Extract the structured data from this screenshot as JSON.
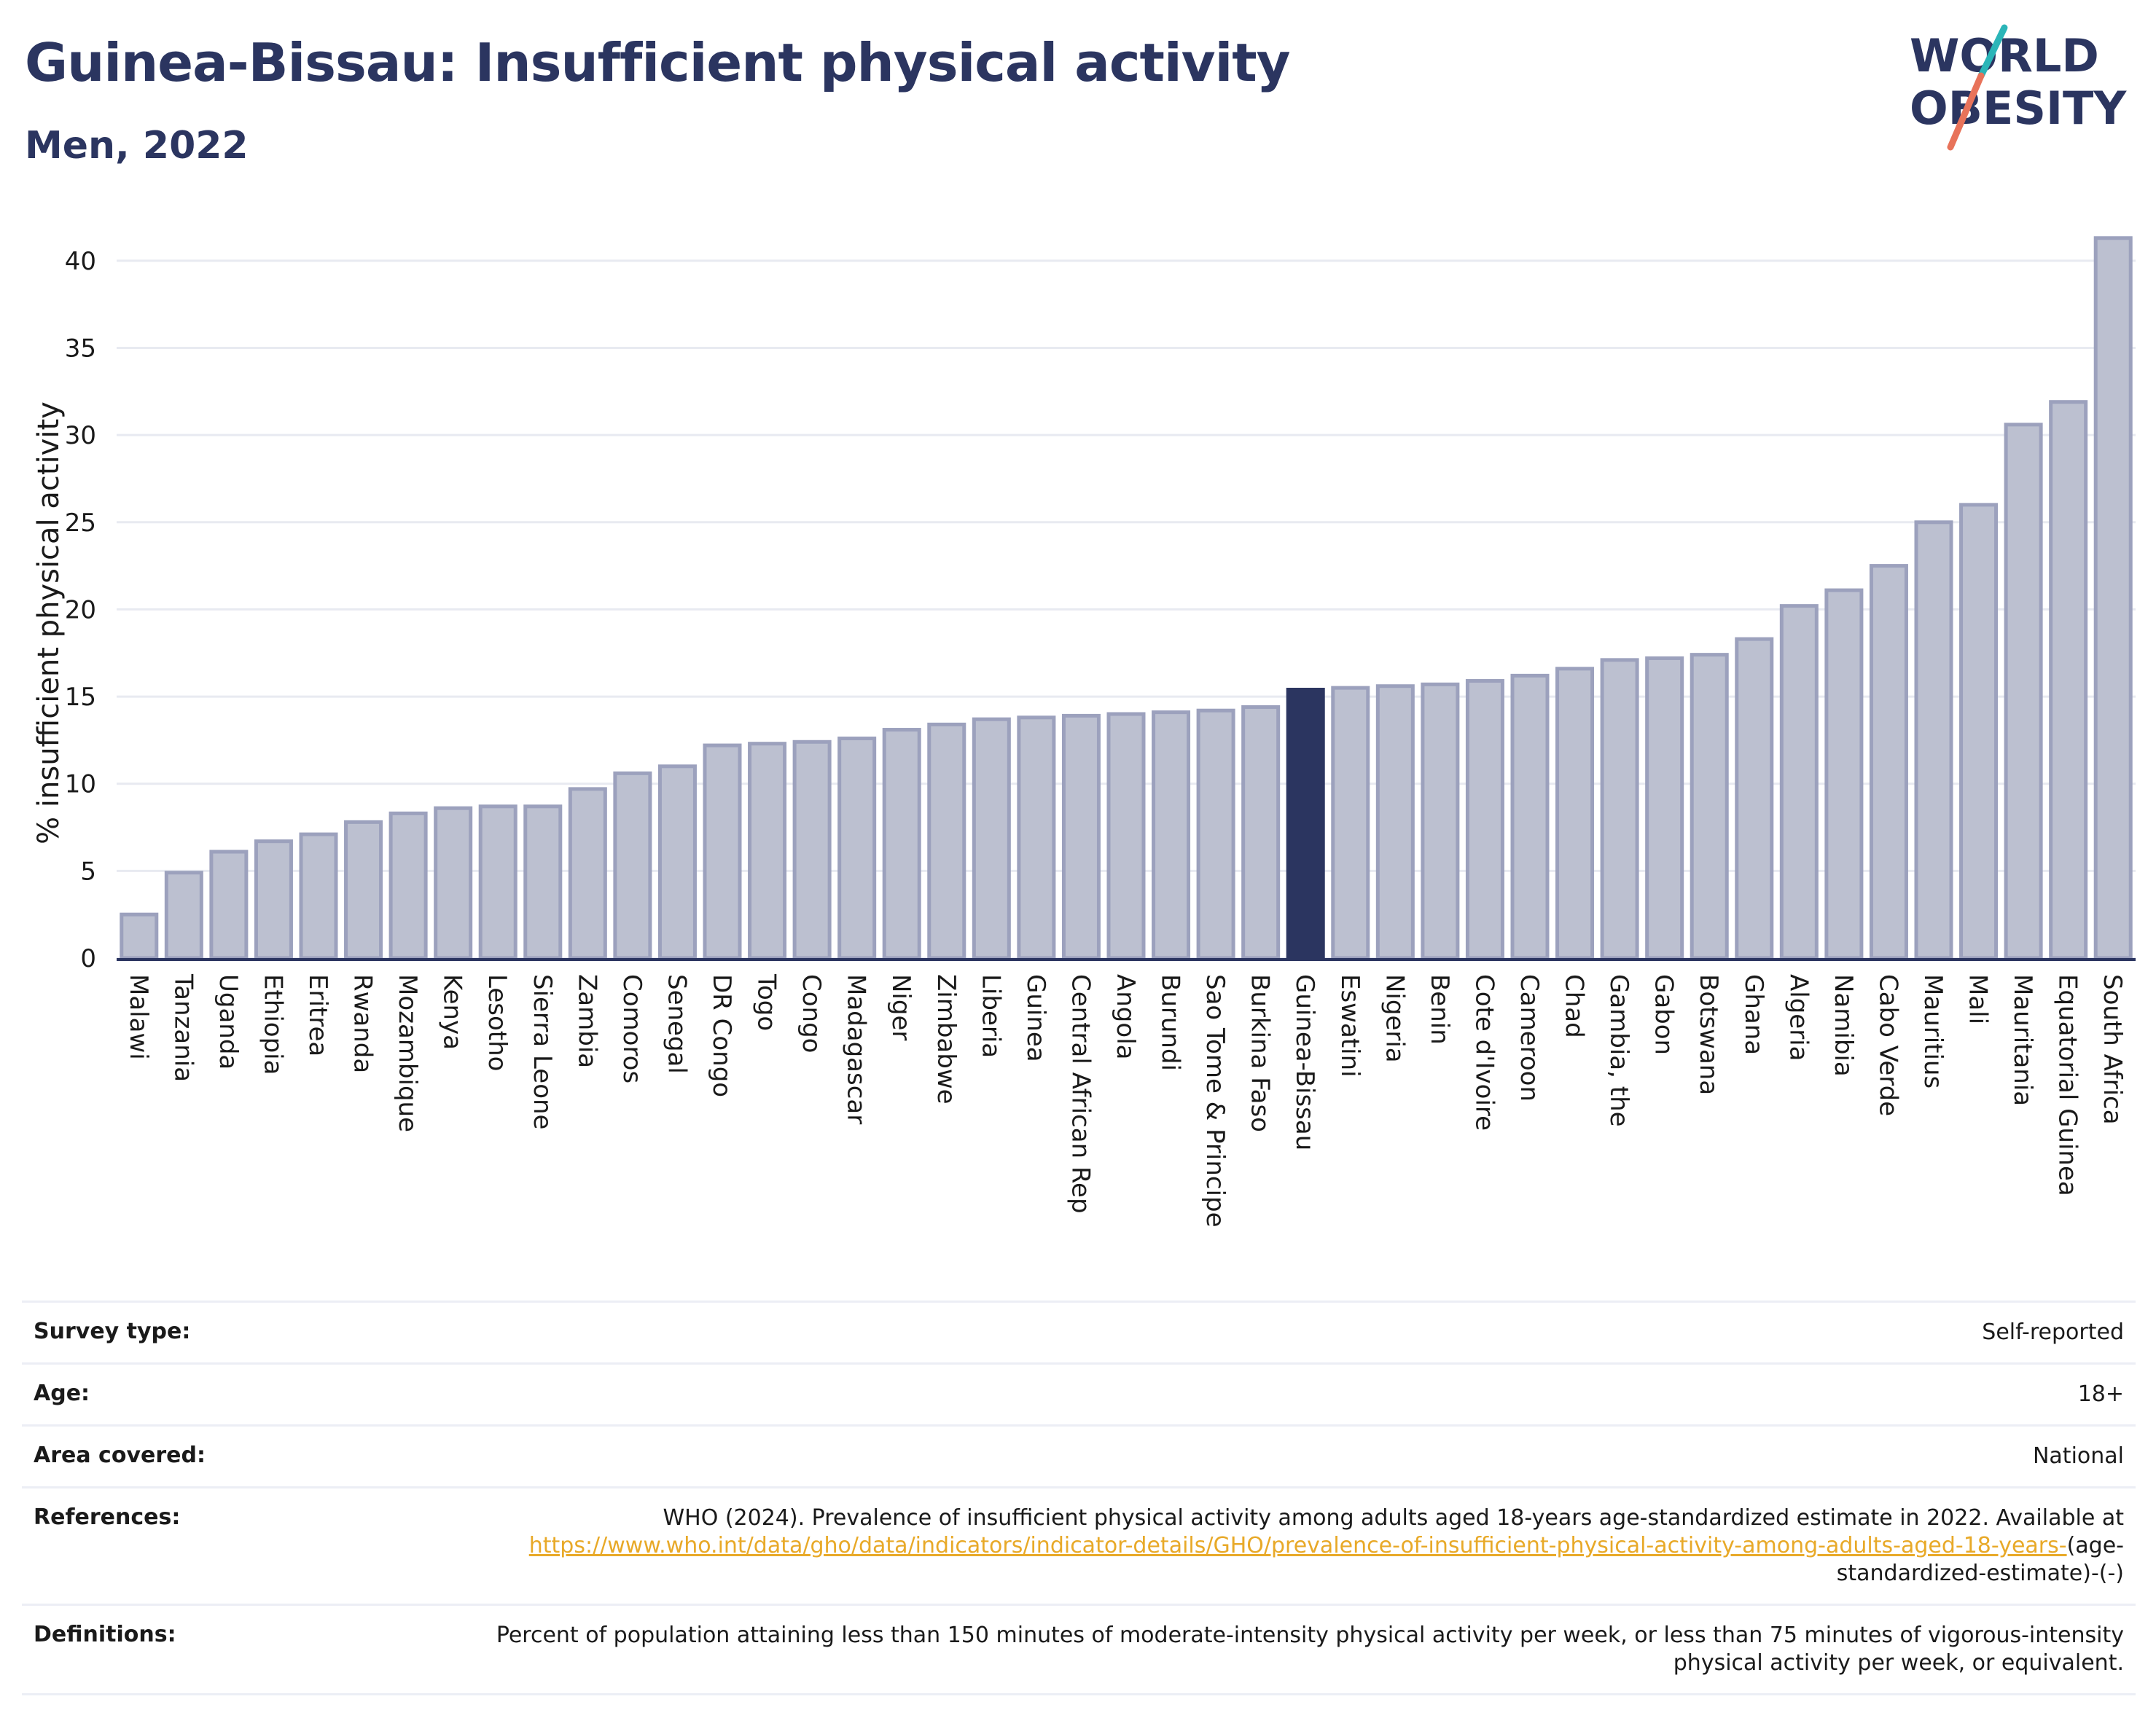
{
  "header": {
    "title": "Guinea-Bissau: Insufficient physical activity",
    "subtitle": "Men, 2022"
  },
  "logo": {
    "line1": "WORLD",
    "line2": "OBESITY",
    "colors": {
      "text": "#2b3560",
      "slash_top": "#2bb5b8",
      "slash_bottom": "#e8735a"
    }
  },
  "colors": {
    "bar": "#bcc0d0",
    "bar_border": "#9ca1bd",
    "highlight": "#2b3560",
    "grid": "#e8eaf1",
    "axis": "#2b3560"
  },
  "chart_data": {
    "type": "bar",
    "ylabel": "% insufficient physical activity",
    "xlabel": "",
    "ylim": [
      0,
      42
    ],
    "yticks": [
      0,
      5,
      10,
      15,
      20,
      25,
      30,
      35,
      40
    ],
    "grid": true,
    "highlight": "Guinea-Bissau",
    "categories": [
      "Malawi",
      "Tanzania",
      "Uganda",
      "Ethiopia",
      "Eritrea",
      "Rwanda",
      "Mozambique",
      "Kenya",
      "Lesotho",
      "Sierra Leone",
      "Zambia",
      "Comoros",
      "Senegal",
      "DR Congo",
      "Togo",
      "Congo",
      "Madagascar",
      "Niger",
      "Zimbabwe",
      "Liberia",
      "Guinea",
      "Central African Rep",
      "Angola",
      "Burundi",
      "Sao Tome & Principe",
      "Burkina Faso",
      "Guinea-Bissau",
      "Eswatini",
      "Nigeria",
      "Benin",
      "Cote d'Ivoire",
      "Cameroon",
      "Chad",
      "Gambia, the",
      "Gabon",
      "Botswana",
      "Ghana",
      "Algeria",
      "Namibia",
      "Cabo Verde",
      "Mauritius",
      "Mali",
      "Mauritania",
      "Equatorial Guinea",
      "South Africa"
    ],
    "values": [
      2.5,
      4.9,
      6.1,
      6.7,
      7.1,
      7.8,
      8.3,
      8.6,
      8.7,
      8.7,
      9.7,
      10.6,
      11.0,
      12.2,
      12.3,
      12.4,
      12.6,
      13.1,
      13.4,
      13.7,
      13.8,
      13.9,
      14.0,
      14.1,
      14.2,
      14.4,
      15.4,
      15.5,
      15.6,
      15.7,
      15.9,
      16.2,
      16.6,
      17.1,
      17.2,
      17.4,
      18.3,
      20.2,
      21.1,
      22.5,
      25.0,
      26.0,
      30.6,
      31.9,
      41.3
    ]
  },
  "info": {
    "survey_type_label": "Survey type:",
    "survey_type_value": "Self-reported",
    "age_label": "Age:",
    "age_value": "18+",
    "area_label": "Area covered:",
    "area_value": "National",
    "references_label": "References:",
    "references_text": "WHO (2024). Prevalence of insufficient physical activity among adults aged 18-years age-standardized estimate in 2022. Available at",
    "references_link": "https://www.who.int/data/gho/data/indicators/indicator-details/GHO/prevalence-of-insufficient-physical-activity-among-adults-aged-18-years-",
    "references_suffix": "(age-standardized-estimate)-(-)",
    "definitions_label": "Definitions:",
    "definitions_value": "Percent of population attaining less than 150 minutes of moderate-intensity physical activity per week, or less than 75 minutes of vigorous-intensity physical activity per week, or equivalent."
  }
}
